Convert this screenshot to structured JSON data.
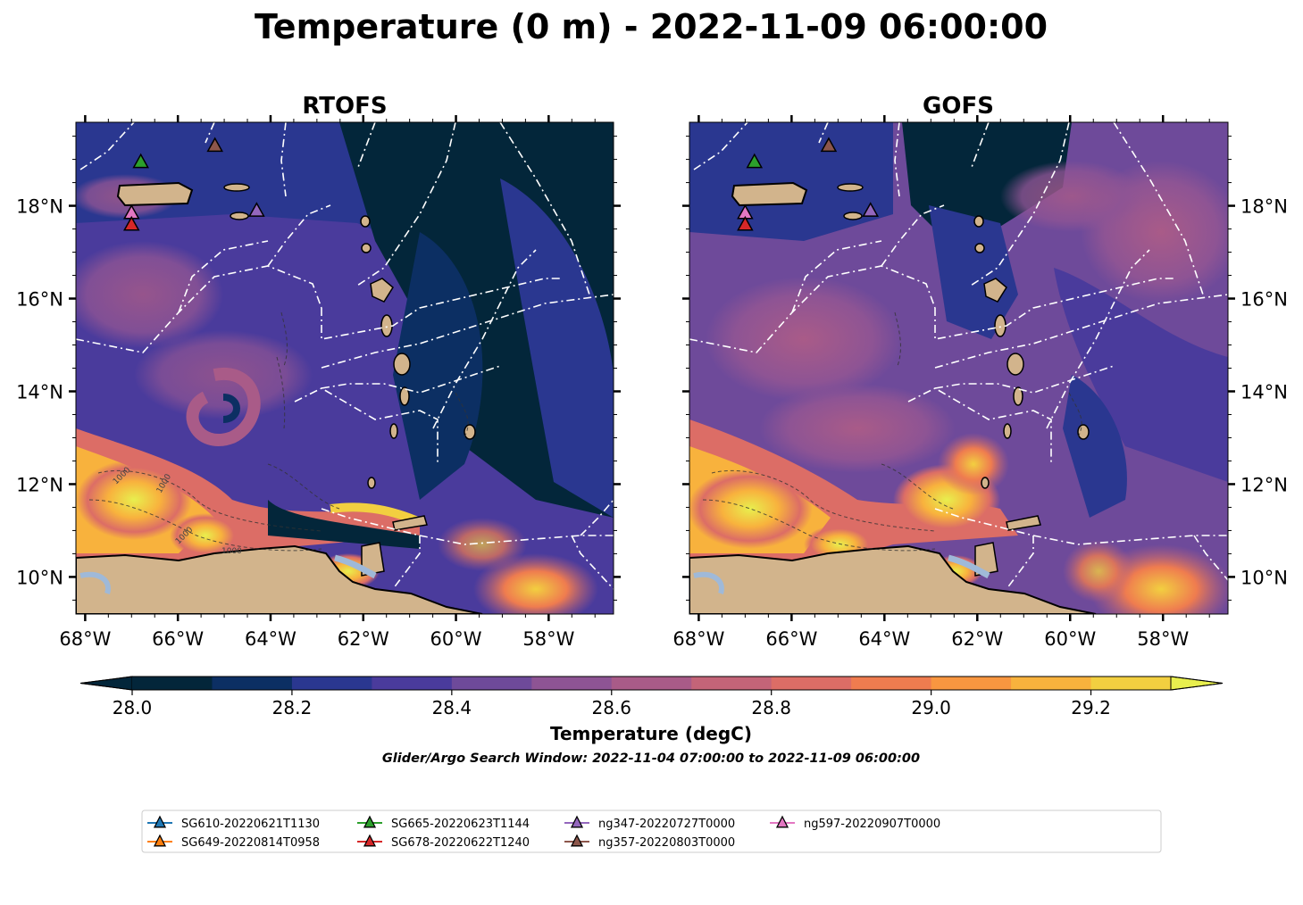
{
  "title": "Temperature (0 m) - 2022-11-09 06:00:00",
  "panels": [
    {
      "title": "RTOFS",
      "side": "left"
    },
    {
      "title": "GOFS",
      "side": "right"
    }
  ],
  "axes": {
    "lon_ticks": [
      "68°W",
      "66°W",
      "64°W",
      "62°W",
      "60°W",
      "58°W"
    ],
    "lon_values": [
      -68,
      -66,
      -64,
      -62,
      -60,
      -58
    ],
    "lat_ticks": [
      "18°N",
      "16°N",
      "14°N",
      "12°N",
      "10°N"
    ],
    "lat_values": [
      18,
      16,
      14,
      12,
      10
    ],
    "lon_range": [
      -68.2,
      -56.6
    ],
    "lat_range": [
      9.2,
      19.8
    ]
  },
  "colorbar": {
    "label": "Temperature (degC)",
    "ticks": [
      "28.0",
      "28.2",
      "28.4",
      "28.6",
      "28.8",
      "29.0",
      "29.2"
    ],
    "tick_values": [
      28.0,
      28.2,
      28.4,
      28.6,
      28.8,
      29.0,
      29.2
    ],
    "range": [
      28.0,
      29.3
    ],
    "step": 0.1,
    "extend": "both",
    "colors": [
      "#03263a",
      "#0c2f63",
      "#2a3790",
      "#4a3b9c",
      "#6e4a9a",
      "#8e5494",
      "#a95b88",
      "#c46478",
      "#dc6d66",
      "#ef7c4f",
      "#f89640",
      "#f8b23d",
      "#f2cf40",
      "#e8ef4e"
    ]
  },
  "search_window": "Glider/Argo Search Window: 2022-11-04 07:00:00 to 2022-11-09 06:00:00",
  "contour_labels": [
    "1000",
    "1000",
    "1000",
    "1000"
  ],
  "land_color": "#d2b48c",
  "legend": [
    {
      "label": "SG610-20220621T1130",
      "color": "#1f77b4"
    },
    {
      "label": "SG649-20220814T0958",
      "color": "#ff7f0e"
    },
    {
      "label": "SG665-20220623T1144",
      "color": "#2ca02c"
    },
    {
      "label": "SG678-20220622T1240",
      "color": "#d62728"
    },
    {
      "label": "ng347-20220727T0000",
      "color": "#9467bd"
    },
    {
      "label": "ng357-20220803T0000",
      "color": "#8c564b"
    },
    {
      "label": "ng597-20220907T0000",
      "color": "#e377c2"
    }
  ],
  "markers": [
    {
      "series": "SG665-20220623T1144",
      "lon": -66.8,
      "lat": 18.95,
      "color": "#2ca02c"
    },
    {
      "series": "ng357-20220803T0000",
      "lon": -65.2,
      "lat": 19.3,
      "color": "#8c564b"
    },
    {
      "series": "ng347-20220727T0000",
      "lon": -64.3,
      "lat": 17.9,
      "color": "#9467bd"
    },
    {
      "series": "ng597-20220907T0000",
      "lon": -67.0,
      "lat": 17.85,
      "color": "#e377c2"
    },
    {
      "series": "SG678-20220622T1240",
      "lon": -67.0,
      "lat": 17.6,
      "color": "#d62728"
    }
  ]
}
